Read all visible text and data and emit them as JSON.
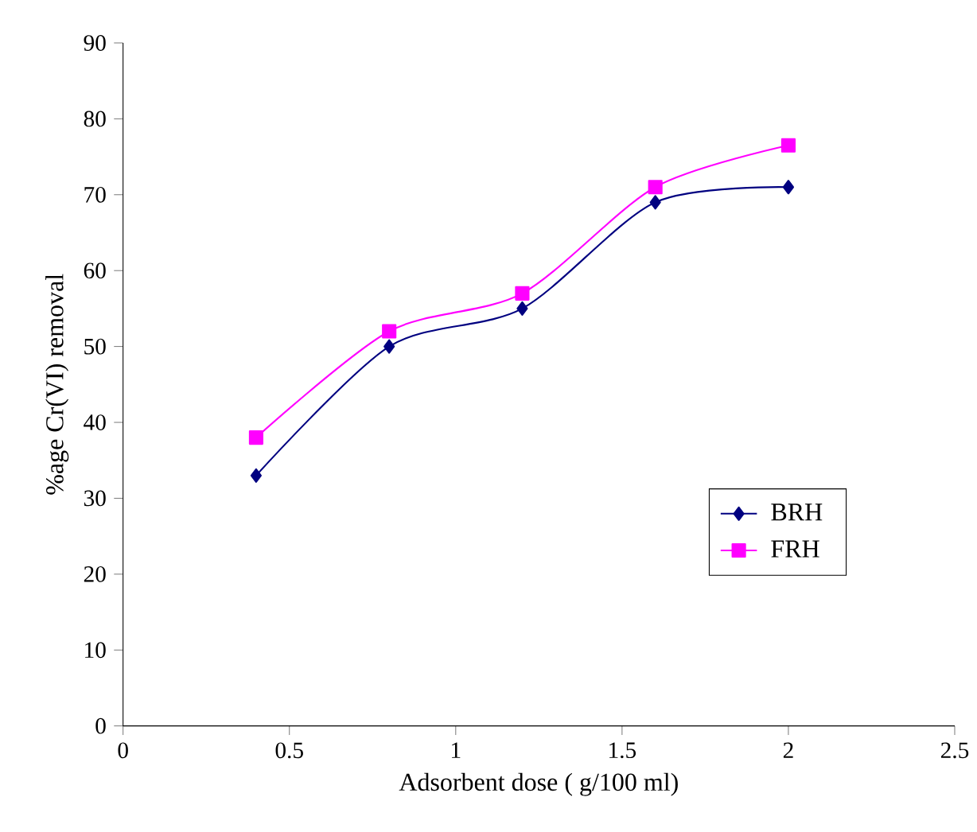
{
  "chart_data": {
    "type": "line",
    "xlabel": "Adsorbent dose ( g/100 ml)",
    "ylabel": "%age Cr(VI) removal",
    "x": [
      0.4,
      0.8,
      1.2,
      1.6,
      2
    ],
    "series": [
      {
        "name": "BRH",
        "color": "#000080",
        "values": [
          33,
          50,
          55,
          69,
          71
        ],
        "marker": "diamond"
      },
      {
        "name": "FRH",
        "color": "#ff00ff",
        "values": [
          38,
          52,
          57,
          71,
          76.5
        ],
        "marker": "square"
      }
    ],
    "xlim": [
      0,
      2.5
    ],
    "xticks": [
      0,
      0.5,
      1,
      1.5,
      2,
      2.5
    ],
    "ylim": [
      0,
      90
    ],
    "yticks": [
      0,
      10,
      20,
      30,
      40,
      50,
      60,
      70,
      80,
      90
    ],
    "legend": "bottom right",
    "grid": false
  }
}
